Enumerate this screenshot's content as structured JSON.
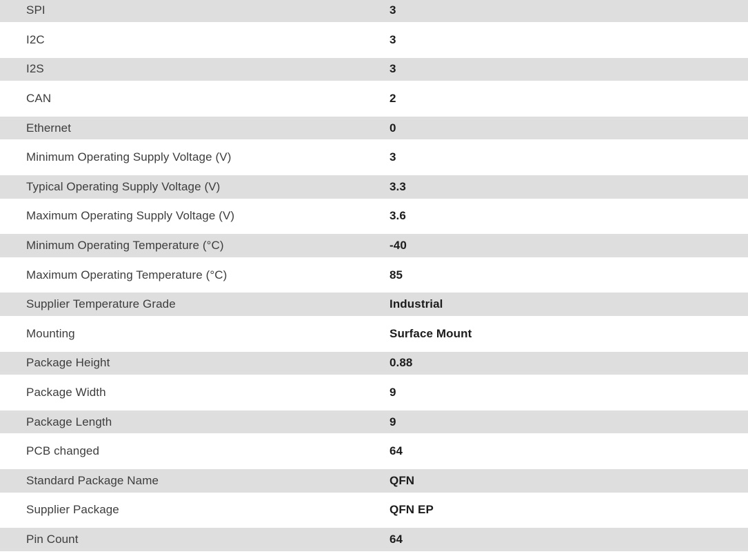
{
  "table": {
    "title": "product-specifications",
    "columns": [
      "attribute",
      "value"
    ],
    "rows": [
      {
        "label": "SPI",
        "value": "3"
      },
      {
        "label": "I2C",
        "value": "3"
      },
      {
        "label": "I2S",
        "value": "3"
      },
      {
        "label": "CAN",
        "value": "2"
      },
      {
        "label": "Ethernet",
        "value": "0"
      },
      {
        "label": "Minimum Operating Supply Voltage (V)",
        "value": "3"
      },
      {
        "label": "Typical Operating Supply Voltage (V)",
        "value": "3.3"
      },
      {
        "label": "Maximum Operating Supply Voltage (V)",
        "value": "3.6"
      },
      {
        "label": "Minimum Operating Temperature (°C)",
        "value": "-40"
      },
      {
        "label": "Maximum Operating Temperature (°C)",
        "value": "85"
      },
      {
        "label": "Supplier Temperature Grade",
        "value": "Industrial"
      },
      {
        "label": "Mounting",
        "value": "Surface Mount"
      },
      {
        "label": "Package Height",
        "value": "0.88"
      },
      {
        "label": "Package Width",
        "value": "9"
      },
      {
        "label": "Package Length",
        "value": "9"
      },
      {
        "label": "PCB changed",
        "value": "64"
      },
      {
        "label": "Standard Package Name",
        "value": "QFN"
      },
      {
        "label": "Supplier Package",
        "value": "QFN EP"
      },
      {
        "label": "Pin Count",
        "value": "64"
      }
    ]
  },
  "colors": {
    "stripe": "#dedede",
    "background": "#ffffff",
    "label_text": "#3d3d3d",
    "value_text": "#1c1c1c"
  }
}
